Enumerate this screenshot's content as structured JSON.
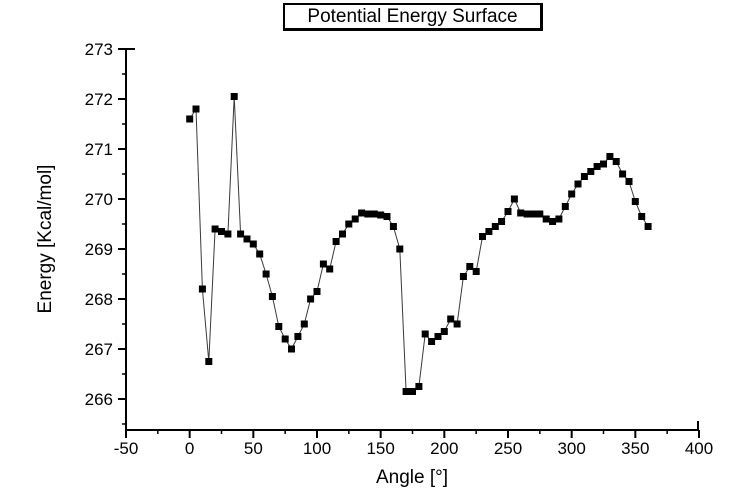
{
  "title": "Potential Energy Surface",
  "colors": {
    "background": "#ffffff",
    "axis": "#000000",
    "marker": "#000000",
    "line": "#3a3a3a",
    "text": "#000000"
  },
  "chart_data": {
    "type": "scatter",
    "title": "Potential Energy Surface",
    "xlabel": "Angle [°]",
    "ylabel": "Energy [Kcal/mol]",
    "xlim": [
      -50,
      400
    ],
    "ylim": [
      265.4,
      273
    ],
    "x_major_ticks": [
      -50,
      0,
      50,
      100,
      150,
      200,
      250,
      300,
      350,
      400
    ],
    "x_minor_step": 25,
    "y_major_ticks": [
      266,
      267,
      268,
      269,
      270,
      271,
      272,
      273
    ],
    "y_minor_step": 0.5,
    "grid": false,
    "legend": null,
    "marker_style": "filled-square",
    "series": [
      {
        "name": "energy-vs-angle",
        "x": [
          0,
          5,
          10,
          15,
          20,
          25,
          30,
          35,
          40,
          45,
          50,
          55,
          60,
          65,
          70,
          75,
          80,
          85,
          90,
          95,
          100,
          105,
          110,
          115,
          120,
          125,
          130,
          135,
          140,
          145,
          150,
          155,
          160,
          165,
          170,
          175,
          180,
          185,
          190,
          195,
          200,
          205,
          210,
          215,
          220,
          225,
          230,
          235,
          240,
          245,
          250,
          255,
          260,
          265,
          270,
          275,
          280,
          285,
          290,
          295,
          300,
          305,
          310,
          315,
          320,
          325,
          330,
          335,
          340,
          345,
          350,
          355,
          360
        ],
        "y": [
          271.6,
          271.8,
          268.2,
          266.75,
          269.4,
          269.35,
          269.3,
          272.05,
          269.3,
          269.2,
          269.1,
          268.9,
          268.5,
          268.05,
          267.45,
          267.2,
          267.0,
          267.25,
          267.5,
          268.0,
          268.15,
          268.7,
          268.6,
          269.15,
          269.3,
          269.5,
          269.6,
          269.72,
          269.7,
          269.7,
          269.68,
          269.65,
          269.45,
          269.0,
          266.15,
          266.15,
          266.25,
          267.3,
          267.15,
          267.25,
          267.35,
          267.6,
          267.5,
          268.45,
          268.65,
          268.55,
          269.25,
          269.35,
          269.45,
          269.55,
          269.75,
          270.0,
          269.72,
          269.7,
          269.7,
          269.7,
          269.6,
          269.55,
          269.6,
          269.85,
          270.1,
          270.3,
          270.45,
          270.55,
          270.65,
          270.7,
          270.85,
          270.75,
          270.5,
          270.35,
          269.95,
          269.65,
          269.45
        ]
      }
    ]
  }
}
